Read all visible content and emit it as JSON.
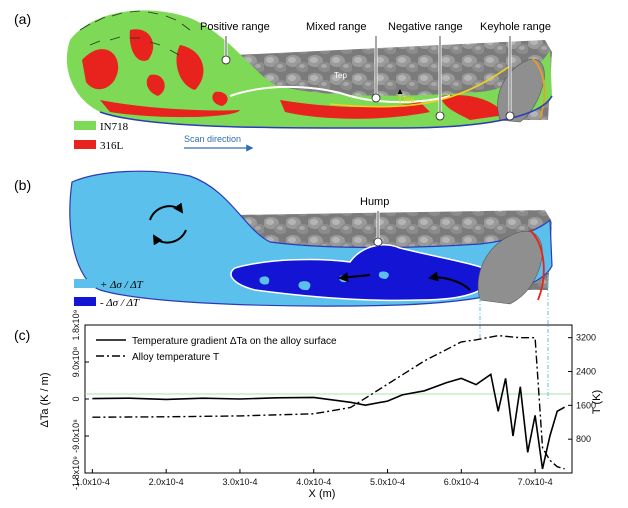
{
  "panels": {
    "a": {
      "label": "(a)",
      "annotations": [
        "Positive range",
        "Mixed range",
        "Negative range",
        "Keyhole range"
      ],
      "tep": "Tep",
      "tes": "Tes",
      "legend": [
        {
          "label": "IN718",
          "color": "#7ed957"
        },
        {
          "label": "316L",
          "color": "#e8231d"
        }
      ],
      "scan_direction": "Scan direction"
    },
    "b": {
      "label": "(b)",
      "hump": "Hump",
      "legend": [
        {
          "label": "+ Δσ / ΔT",
          "color": "#5bc0eb"
        },
        {
          "label": "- Δσ / ΔT",
          "color": "#1414d4"
        }
      ]
    },
    "c": {
      "label": "(c)"
    }
  },
  "chart_data": {
    "type": "line",
    "xlabel": "X (m)",
    "ylabel_left": "ΔTa (K / m)",
    "ylabel_right": "T (K)",
    "xlim": [
      9e-05,
      0.00075
    ],
    "ylim_left": [
      -1800000000,
      1800000000
    ],
    "ylim_right": [
      0,
      3500
    ],
    "x_ticks": [
      "1.0x10-4",
      "2.0x10-4",
      "3.0x10-4",
      "4.0x10-4",
      "5.0x10-4",
      "6.0x10-4",
      "7.0x10-4"
    ],
    "y_ticks_left": [
      "1.8x10⁹",
      "9.0x10⁸",
      "0",
      "-9.0x10⁸",
      "-1.8x10⁹"
    ],
    "y_ticks_right": [
      "3200",
      "2400",
      "1600",
      "800"
    ],
    "series": [
      {
        "name": "Temperature gradient ΔTa on the alloy surface",
        "style": "solid",
        "axis": "left",
        "x": [
          0.0001,
          0.00015,
          0.0002,
          0.00025,
          0.0003,
          0.00035,
          0.0004,
          0.00045,
          0.00047,
          0.0005,
          0.00052,
          0.00055,
          0.00058,
          0.0006,
          0.00062,
          0.00064,
          0.00065,
          0.00066,
          0.00067,
          0.00068,
          0.00069,
          0.0007,
          0.00071,
          0.00072,
          0.00073,
          0.00074
        ],
        "y": [
          10000000,
          20000000,
          -10000000,
          20000000,
          0,
          30000000,
          40000000,
          -80000000,
          -150000000,
          -50000000,
          100000000,
          200000000,
          400000000,
          500000000,
          350000000,
          600000000,
          -300000000,
          500000000,
          -900000000,
          300000000,
          -1300000000,
          -400000000,
          -1700000000,
          -900000000,
          -300000000,
          -200000000
        ]
      },
      {
        "name": "Alloy temperature T",
        "style": "dash-dot",
        "axis": "right",
        "x": [
          0.0001,
          0.0002,
          0.0003,
          0.0004,
          0.00045,
          0.0005,
          0.00055,
          0.0006,
          0.00062,
          0.00065,
          0.00068,
          0.0007,
          0.00071,
          0.00072,
          0.00073,
          0.00074
        ],
        "y": [
          1320,
          1330,
          1350,
          1400,
          1550,
          2100,
          2650,
          3100,
          3150,
          3250,
          3200,
          3200,
          600,
          300,
          150,
          100
        ]
      }
    ]
  }
}
